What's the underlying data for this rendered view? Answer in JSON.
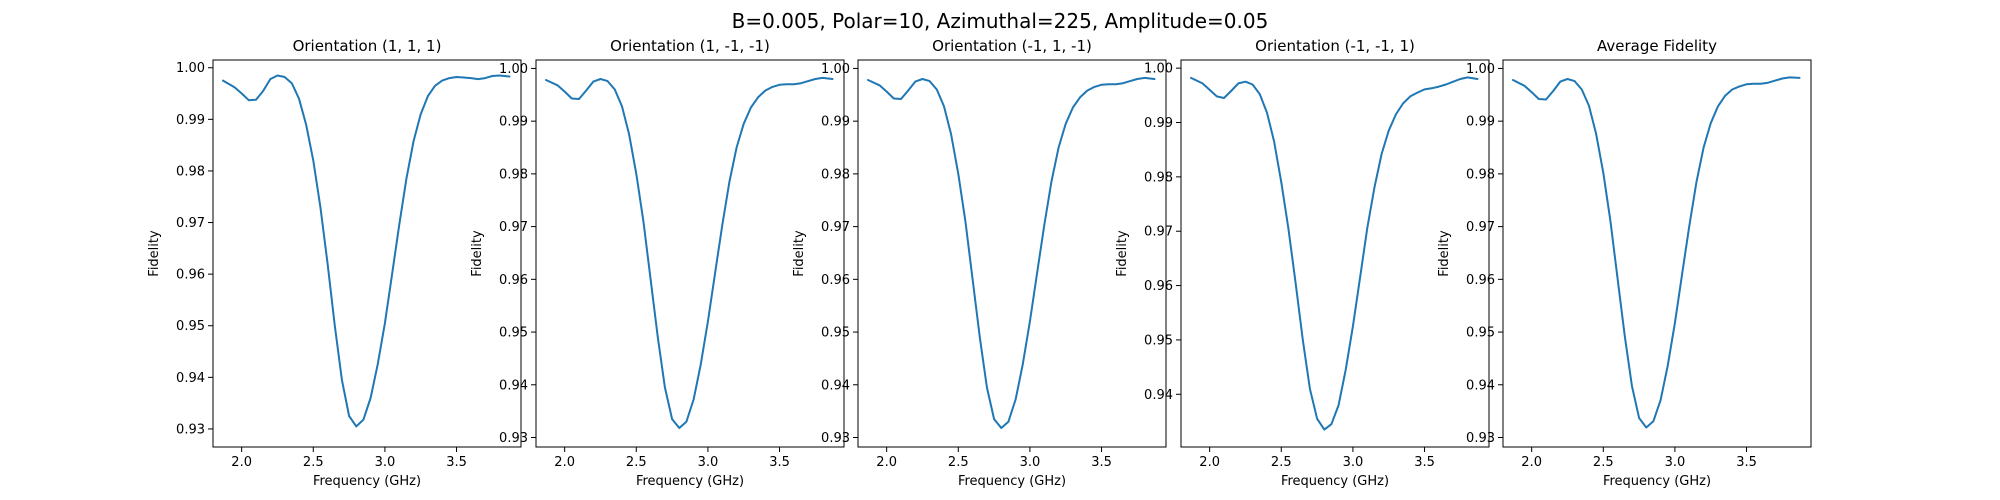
{
  "figure": {
    "suptitle": "B=0.005, Polar=10, Azimuthal=225, Amplitude=0.05"
  },
  "chart_data": [
    {
      "type": "line",
      "title": "Orientation (1, 1, 1)",
      "xlabel": "Frequency (GHz)",
      "ylabel": "Fidelity",
      "xlim": [
        1.8,
        3.95
      ],
      "ylim": [
        0.9265,
        1.0015
      ],
      "xticks": [
        2.0,
        2.5,
        3.0,
        3.5
      ],
      "xtick_labels": [
        "2.0",
        "2.5",
        "3.0",
        "3.5"
      ],
      "yticks": [
        0.93,
        0.94,
        0.95,
        0.96,
        0.97,
        0.98,
        0.99,
        1.0
      ],
      "ytick_labels": [
        "0.93",
        "0.94",
        "0.95",
        "0.96",
        "0.97",
        "0.98",
        "0.99",
        "1.00"
      ],
      "color": "#1f77b4",
      "x": [
        1.87,
        1.95,
        2.0,
        2.05,
        2.1,
        2.15,
        2.2,
        2.25,
        2.3,
        2.35,
        2.4,
        2.45,
        2.5,
        2.55,
        2.6,
        2.65,
        2.7,
        2.75,
        2.8,
        2.85,
        2.9,
        2.95,
        3.0,
        3.05,
        3.1,
        3.15,
        3.2,
        3.25,
        3.3,
        3.35,
        3.4,
        3.45,
        3.5,
        3.55,
        3.6,
        3.65,
        3.7,
        3.75,
        3.8,
        3.87
      ],
      "y": [
        0.9975,
        0.9962,
        0.995,
        0.9937,
        0.9938,
        0.9955,
        0.9978,
        0.9985,
        0.9982,
        0.997,
        0.994,
        0.989,
        0.982,
        0.973,
        0.962,
        0.95,
        0.9395,
        0.9325,
        0.9305,
        0.9318,
        0.936,
        0.9425,
        0.9505,
        0.96,
        0.9695,
        0.9785,
        0.9858,
        0.991,
        0.9945,
        0.9965,
        0.9975,
        0.998,
        0.9982,
        0.9981,
        0.998,
        0.9978,
        0.998,
        0.9984,
        0.9985,
        0.9983
      ]
    },
    {
      "type": "line",
      "title": "Orientation (1, -1, -1)",
      "xlabel": "Frequency (GHz)",
      "ylabel": "Fidelity",
      "xlim": [
        1.8,
        3.95
      ],
      "ylim": [
        0.9282,
        1.0016
      ],
      "xticks": [
        2.0,
        2.5,
        3.0,
        3.5
      ],
      "xtick_labels": [
        "2.0",
        "2.5",
        "3.0",
        "3.5"
      ],
      "yticks": [
        0.93,
        0.94,
        0.95,
        0.96,
        0.97,
        0.98,
        0.99,
        1.0
      ],
      "ytick_labels": [
        "0.93",
        "0.94",
        "0.95",
        "0.96",
        "0.97",
        "0.98",
        "0.99",
        "1.00"
      ],
      "color": "#1f77b4",
      "x": [
        1.87,
        1.95,
        2.0,
        2.05,
        2.1,
        2.15,
        2.2,
        2.25,
        2.3,
        2.35,
        2.4,
        2.45,
        2.5,
        2.55,
        2.6,
        2.65,
        2.7,
        2.75,
        2.8,
        2.85,
        2.9,
        2.95,
        3.0,
        3.05,
        3.1,
        3.15,
        3.2,
        3.25,
        3.3,
        3.35,
        3.4,
        3.45,
        3.5,
        3.55,
        3.6,
        3.65,
        3.7,
        3.75,
        3.8,
        3.87
      ],
      "y": [
        0.9978,
        0.9968,
        0.9956,
        0.9943,
        0.9942,
        0.9958,
        0.9975,
        0.998,
        0.9976,
        0.996,
        0.9928,
        0.9875,
        0.98,
        0.971,
        0.96,
        0.949,
        0.9395,
        0.9335,
        0.9318,
        0.933,
        0.9372,
        0.9438,
        0.952,
        0.9612,
        0.9702,
        0.9785,
        0.985,
        0.9895,
        0.9926,
        0.9945,
        0.9958,
        0.9965,
        0.9969,
        0.997,
        0.997,
        0.9972,
        0.9976,
        0.998,
        0.9982,
        0.998
      ]
    },
    {
      "type": "line",
      "title": "Orientation (-1, 1, -1)",
      "xlabel": "Frequency (GHz)",
      "ylabel": "Fidelity",
      "xlim": [
        1.8,
        3.95
      ],
      "ylim": [
        0.9282,
        1.0016
      ],
      "xticks": [
        2.0,
        2.5,
        3.0,
        3.5
      ],
      "xtick_labels": [
        "2.0",
        "2.5",
        "3.0",
        "3.5"
      ],
      "yticks": [
        0.93,
        0.94,
        0.95,
        0.96,
        0.97,
        0.98,
        0.99,
        1.0
      ],
      "ytick_labels": [
        "0.93",
        "0.94",
        "0.95",
        "0.96",
        "0.97",
        "0.98",
        "0.99",
        "1.00"
      ],
      "color": "#1f77b4",
      "x": [
        1.87,
        1.95,
        2.0,
        2.05,
        2.1,
        2.15,
        2.2,
        2.25,
        2.3,
        2.35,
        2.4,
        2.45,
        2.5,
        2.55,
        2.6,
        2.65,
        2.7,
        2.75,
        2.8,
        2.85,
        2.9,
        2.95,
        3.0,
        3.05,
        3.1,
        3.15,
        3.2,
        3.25,
        3.3,
        3.35,
        3.4,
        3.45,
        3.5,
        3.55,
        3.6,
        3.65,
        3.7,
        3.75,
        3.8,
        3.87
      ],
      "y": [
        0.9978,
        0.9968,
        0.9956,
        0.9943,
        0.9942,
        0.9958,
        0.9975,
        0.998,
        0.9976,
        0.996,
        0.9928,
        0.9875,
        0.98,
        0.971,
        0.96,
        0.949,
        0.9395,
        0.9335,
        0.9318,
        0.933,
        0.9372,
        0.9438,
        0.952,
        0.9612,
        0.9702,
        0.9785,
        0.985,
        0.9895,
        0.9926,
        0.9945,
        0.9958,
        0.9965,
        0.9969,
        0.997,
        0.997,
        0.9972,
        0.9976,
        0.998,
        0.9982,
        0.998
      ]
    },
    {
      "type": "line",
      "title": "Orientation (-1, -1, 1)",
      "xlabel": "Frequency (GHz)",
      "ylabel": "Fidelity",
      "xlim": [
        1.8,
        3.95
      ],
      "ylim": [
        0.9303,
        1.0015
      ],
      "xticks": [
        2.0,
        2.5,
        3.0,
        3.5
      ],
      "xtick_labels": [
        "2.0",
        "2.5",
        "3.0",
        "3.5"
      ],
      "yticks": [
        0.94,
        0.95,
        0.96,
        0.97,
        0.98,
        0.99,
        1.0
      ],
      "ytick_labels": [
        "0.94",
        "0.95",
        "0.96",
        "0.97",
        "0.98",
        "0.99",
        "1.00"
      ],
      "color": "#1f77b4",
      "x": [
        1.87,
        1.95,
        2.0,
        2.05,
        2.1,
        2.15,
        2.2,
        2.25,
        2.3,
        2.35,
        2.4,
        2.45,
        2.5,
        2.55,
        2.6,
        2.65,
        2.7,
        2.75,
        2.8,
        2.85,
        2.9,
        2.95,
        3.0,
        3.05,
        3.1,
        3.15,
        3.2,
        3.25,
        3.3,
        3.35,
        3.4,
        3.45,
        3.5,
        3.55,
        3.6,
        3.65,
        3.7,
        3.75,
        3.8,
        3.87
      ],
      "y": [
        0.9982,
        0.9972,
        0.996,
        0.9948,
        0.9945,
        0.9958,
        0.9972,
        0.9975,
        0.997,
        0.9952,
        0.9918,
        0.9865,
        0.979,
        0.9705,
        0.9605,
        0.95,
        0.941,
        0.9355,
        0.9335,
        0.9345,
        0.938,
        0.9445,
        0.9525,
        0.9615,
        0.9705,
        0.978,
        0.9842,
        0.9885,
        0.9915,
        0.9935,
        0.9948,
        0.9955,
        0.9961,
        0.9963,
        0.9966,
        0.997,
        0.9975,
        0.998,
        0.9983,
        0.998
      ]
    },
    {
      "type": "line",
      "title": "Average Fidelity",
      "xlabel": "Frequency (GHz)",
      "ylabel": "Fidelity",
      "xlim": [
        1.8,
        3.95
      ],
      "ylim": [
        0.9282,
        1.0016
      ],
      "xticks": [
        2.0,
        2.5,
        3.0,
        3.5
      ],
      "xtick_labels": [
        "2.0",
        "2.5",
        "3.0",
        "3.5"
      ],
      "yticks": [
        0.93,
        0.94,
        0.95,
        0.96,
        0.97,
        0.98,
        0.99,
        1.0
      ],
      "ytick_labels": [
        "0.93",
        "0.94",
        "0.95",
        "0.96",
        "0.97",
        "0.98",
        "0.99",
        "1.00"
      ],
      "color": "#1f77b4",
      "x": [
        1.87,
        1.95,
        2.0,
        2.05,
        2.1,
        2.15,
        2.2,
        2.25,
        2.3,
        2.35,
        2.4,
        2.45,
        2.5,
        2.55,
        2.6,
        2.65,
        2.7,
        2.75,
        2.8,
        2.85,
        2.9,
        2.95,
        3.0,
        3.05,
        3.1,
        3.15,
        3.2,
        3.25,
        3.3,
        3.35,
        3.4,
        3.45,
        3.5,
        3.55,
        3.6,
        3.65,
        3.7,
        3.75,
        3.8,
        3.87
      ],
      "y": [
        0.9978,
        0.9967,
        0.9955,
        0.9942,
        0.9941,
        0.9957,
        0.9975,
        0.998,
        0.9976,
        0.996,
        0.9929,
        0.9876,
        0.9802,
        0.9711,
        0.9601,
        0.9492,
        0.9398,
        0.9337,
        0.9319,
        0.9331,
        0.9371,
        0.9436,
        0.9517,
        0.961,
        0.97,
        0.9784,
        0.985,
        0.9896,
        0.9928,
        0.9948,
        0.996,
        0.9966,
        0.997,
        0.9971,
        0.9971,
        0.9973,
        0.9977,
        0.9981,
        0.9983,
        0.9982
      ]
    }
  ]
}
